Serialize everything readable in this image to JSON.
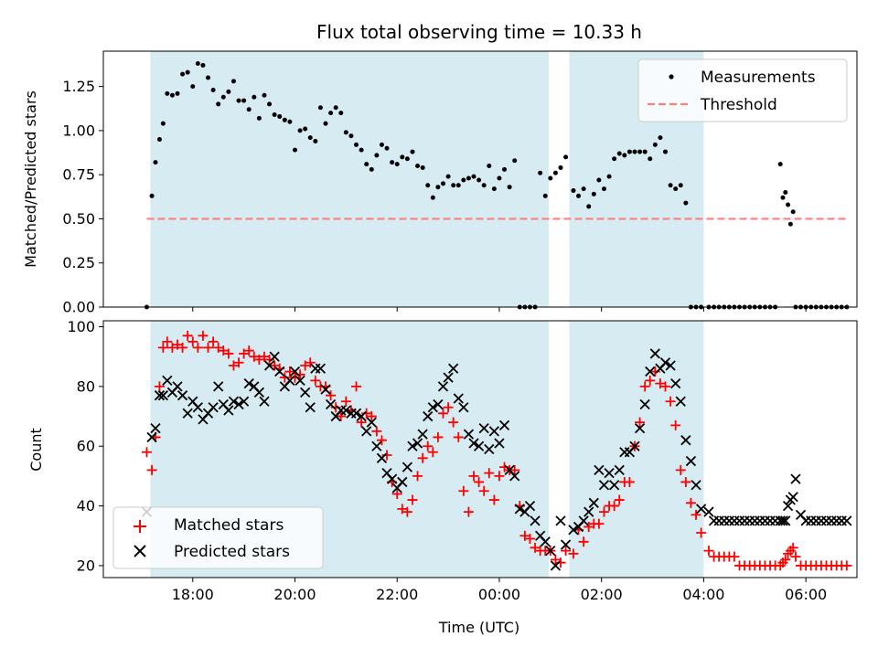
{
  "chart_data": [
    {
      "type": "scatter",
      "title": "Flux total observing time = 10.33 h",
      "xlabel": "",
      "ylabel": "Matched/Predicted stars",
      "xlim": [
        16.25,
        31.0
      ],
      "ylim": [
        0.0,
        1.45
      ],
      "yticks": [
        0.0,
        0.25,
        0.5,
        0.75,
        1.0,
        1.25
      ],
      "yticklabels": [
        "0.00",
        "0.25",
        "0.50",
        "0.75",
        "1.00",
        "1.25"
      ],
      "xticks": [
        18,
        20,
        22,
        24,
        26,
        28,
        30
      ],
      "show_xticklabels": false,
      "shaded_regions": [
        [
          17.17,
          24.97
        ],
        [
          25.37,
          28.0
        ]
      ],
      "legend": {
        "placement": "top-right",
        "entries": [
          "Measurements",
          "Threshold"
        ]
      },
      "threshold": {
        "name": "Threshold",
        "x": [
          17.1,
          30.8
        ],
        "y": 0.5,
        "color": "#ff7f7f"
      },
      "series": [
        {
          "name": "Measurements",
          "color": "#000000",
          "x": [
            17.1,
            17.2,
            17.27,
            17.35,
            17.42,
            17.5,
            17.6,
            17.7,
            17.8,
            17.9,
            18.0,
            18.1,
            18.2,
            18.3,
            18.4,
            18.5,
            18.6,
            18.7,
            18.8,
            18.9,
            19.0,
            19.1,
            19.2,
            19.3,
            19.4,
            19.5,
            19.6,
            19.7,
            19.8,
            19.9,
            20.0,
            20.1,
            20.2,
            20.3,
            20.4,
            20.5,
            20.6,
            20.7,
            20.8,
            20.9,
            21.0,
            21.1,
            21.2,
            21.3,
            21.4,
            21.5,
            21.6,
            21.7,
            21.8,
            21.9,
            22.0,
            22.1,
            22.2,
            22.3,
            22.4,
            22.5,
            22.6,
            22.7,
            22.8,
            22.9,
            23.0,
            23.1,
            23.2,
            23.3,
            23.4,
            23.5,
            23.6,
            23.7,
            23.8,
            23.9,
            24.0,
            24.1,
            24.2,
            24.3,
            24.4,
            24.5,
            24.6,
            24.7,
            24.8,
            24.9,
            25.0,
            25.1,
            25.2,
            25.3,
            25.45,
            25.55,
            25.65,
            25.75,
            25.85,
            25.95,
            26.05,
            26.15,
            26.25,
            26.35,
            26.45,
            26.55,
            26.65,
            26.75,
            26.85,
            26.95,
            27.05,
            27.15,
            27.25,
            27.35,
            27.45,
            27.55,
            27.65,
            27.75,
            27.85,
            27.95,
            28.1,
            28.2,
            28.3,
            28.4,
            28.5,
            28.6,
            28.7,
            28.8,
            28.9,
            29.0,
            29.1,
            29.2,
            29.3,
            29.4,
            29.5,
            29.55,
            29.6,
            29.65,
            29.7,
            29.75,
            29.8,
            29.9,
            30.0,
            30.1,
            30.2,
            30.3,
            30.4,
            30.5,
            30.6,
            30.7,
            30.8
          ],
          "y": [
            0.0,
            0.63,
            0.82,
            0.95,
            1.04,
            1.21,
            1.2,
            1.21,
            1.32,
            1.33,
            1.25,
            1.38,
            1.37,
            1.3,
            1.23,
            1.15,
            1.19,
            1.22,
            1.28,
            1.17,
            1.17,
            1.12,
            1.19,
            1.07,
            1.2,
            1.15,
            1.09,
            1.08,
            1.06,
            1.05,
            0.89,
            1.0,
            1.01,
            0.96,
            0.94,
            1.13,
            1.04,
            1.1,
            1.13,
            1.1,
            0.99,
            0.97,
            0.92,
            0.89,
            0.81,
            0.78,
            0.86,
            0.92,
            0.9,
            0.82,
            0.81,
            0.85,
            0.84,
            0.88,
            0.8,
            0.79,
            0.69,
            0.62,
            0.68,
            0.7,
            0.74,
            0.69,
            0.69,
            0.72,
            0.73,
            0.74,
            0.72,
            0.69,
            0.8,
            0.67,
            0.73,
            0.78,
            0.68,
            0.83,
            0.0,
            0.0,
            0.0,
            0.0,
            0.76,
            0.63,
            0.73,
            0.76,
            0.79,
            0.85,
            0.66,
            0.63,
            0.67,
            0.57,
            0.64,
            0.72,
            0.67,
            0.74,
            0.84,
            0.87,
            0.86,
            0.88,
            0.88,
            0.88,
            0.88,
            0.84,
            0.92,
            0.96,
            0.88,
            0.69,
            0.67,
            0.69,
            0.59,
            0.0,
            0.0,
            0.0,
            0.0,
            0.0,
            0.0,
            0.0,
            0.0,
            0.0,
            0.0,
            0.0,
            0.0,
            0.0,
            0.0,
            0.0,
            0.0,
            0.0,
            0.81,
            0.62,
            0.65,
            0.58,
            0.47,
            0.54,
            0.0,
            0.0,
            0.0,
            0.0,
            0.0,
            0.0,
            0.0,
            0.0,
            0.0,
            0.0,
            0.0
          ]
        }
      ]
    },
    {
      "type": "scatter",
      "title": "",
      "xlabel": "Time (UTC)",
      "ylabel": "Count",
      "xlim": [
        16.25,
        31.0
      ],
      "ylim": [
        16,
        102
      ],
      "yticks": [
        20,
        40,
        60,
        80,
        100
      ],
      "yticklabels": [
        "20",
        "40",
        "60",
        "80",
        "100"
      ],
      "xticks": [
        18,
        20,
        22,
        24,
        26,
        28,
        30
      ],
      "xticklabels": [
        "18:00",
        "20:00",
        "22:00",
        "00:00",
        "02:00",
        "04:00",
        "06:00"
      ],
      "shaded_regions": [
        [
          17.17,
          24.97
        ],
        [
          25.37,
          28.0
        ]
      ],
      "legend": {
        "placement": "bottom-left",
        "entries": [
          "Matched stars",
          "Predicted stars"
        ]
      },
      "series": [
        {
          "name": "Matched stars",
          "marker": "plus",
          "color": "#ff0000",
          "x": [
            17.1,
            17.2,
            17.27,
            17.35,
            17.42,
            17.5,
            17.6,
            17.7,
            17.8,
            17.9,
            18.0,
            18.1,
            18.2,
            18.3,
            18.4,
            18.5,
            18.6,
            18.7,
            18.8,
            18.9,
            19.0,
            19.1,
            19.2,
            19.3,
            19.4,
            19.5,
            19.6,
            19.7,
            19.8,
            19.9,
            20.0,
            20.1,
            20.2,
            20.3,
            20.4,
            20.5,
            20.6,
            20.7,
            20.8,
            20.9,
            21.0,
            21.1,
            21.2,
            21.3,
            21.4,
            21.5,
            21.6,
            21.7,
            21.8,
            21.9,
            22.0,
            22.1,
            22.2,
            22.3,
            22.4,
            22.5,
            22.6,
            22.7,
            22.8,
            22.9,
            23.0,
            23.1,
            23.2,
            23.3,
            23.4,
            23.5,
            23.6,
            23.7,
            23.8,
            23.9,
            24.0,
            24.1,
            24.2,
            24.3,
            24.4,
            24.5,
            24.6,
            24.7,
            24.8,
            24.9,
            25.0,
            25.1,
            25.2,
            25.3,
            25.45,
            25.55,
            25.65,
            25.75,
            25.85,
            25.95,
            26.05,
            26.15,
            26.25,
            26.35,
            26.45,
            26.55,
            26.65,
            26.75,
            26.85,
            26.95,
            27.05,
            27.15,
            27.25,
            27.35,
            27.45,
            27.55,
            27.65,
            27.75,
            27.85,
            27.95,
            28.1,
            28.2,
            28.3,
            28.4,
            28.5,
            28.6,
            28.7,
            28.8,
            28.9,
            29.0,
            29.1,
            29.2,
            29.3,
            29.4,
            29.5,
            29.55,
            29.6,
            29.65,
            29.7,
            29.75,
            29.8,
            29.9,
            30.0,
            30.1,
            30.2,
            30.3,
            30.4,
            30.5,
            30.6,
            30.7,
            30.8
          ],
          "y": [
            58,
            52,
            63,
            80,
            93,
            95,
            93,
            94,
            93,
            97,
            95,
            93,
            97,
            93,
            95,
            93,
            92,
            91,
            87,
            88,
            91,
            92,
            90,
            89,
            90,
            89,
            87,
            86,
            83,
            85,
            83,
            84,
            87,
            88,
            82,
            80,
            80,
            77,
            73,
            70,
            75,
            72,
            80,
            68,
            71,
            70,
            65,
            62,
            57,
            48,
            44,
            39,
            38,
            42,
            50,
            56,
            60,
            58,
            63,
            71,
            73,
            68,
            63,
            45,
            38,
            50,
            48,
            45,
            51,
            42,
            50,
            53,
            52,
            52,
            40,
            30,
            29,
            26,
            25,
            25,
            25,
            22,
            21,
            25,
            24,
            32,
            28,
            33,
            34,
            34,
            38,
            40,
            40,
            42,
            48,
            48,
            60,
            68,
            80,
            82,
            85,
            81,
            80,
            75,
            67,
            52,
            48,
            41,
            37,
            31,
            25,
            23,
            23,
            23,
            23,
            23,
            20,
            20,
            20,
            20,
            20,
            20,
            20,
            20,
            20,
            21,
            22,
            24,
            25,
            26,
            23,
            20,
            20,
            20,
            20,
            20,
            20,
            20,
            20,
            20,
            20
          ]
        },
        {
          "name": "Predicted stars",
          "marker": "x",
          "color": "#000000",
          "x": [
            17.1,
            17.2,
            17.27,
            17.35,
            17.42,
            17.5,
            17.6,
            17.7,
            17.8,
            17.9,
            18.0,
            18.1,
            18.2,
            18.3,
            18.4,
            18.5,
            18.6,
            18.7,
            18.8,
            18.9,
            19.0,
            19.1,
            19.2,
            19.3,
            19.4,
            19.5,
            19.6,
            19.7,
            19.8,
            19.9,
            20.0,
            20.1,
            20.2,
            20.3,
            20.4,
            20.5,
            20.6,
            20.7,
            20.8,
            20.9,
            21.0,
            21.1,
            21.2,
            21.3,
            21.4,
            21.5,
            21.6,
            21.7,
            21.8,
            21.9,
            22.0,
            22.1,
            22.2,
            22.3,
            22.4,
            22.5,
            22.6,
            22.7,
            22.8,
            22.9,
            23.0,
            23.1,
            23.2,
            23.3,
            23.4,
            23.5,
            23.6,
            23.7,
            23.8,
            23.9,
            24.0,
            24.1,
            24.2,
            24.3,
            24.4,
            24.5,
            24.6,
            24.7,
            24.8,
            24.9,
            25.0,
            25.1,
            25.2,
            25.3,
            25.45,
            25.55,
            25.65,
            25.75,
            25.85,
            25.95,
            26.05,
            26.15,
            26.25,
            26.35,
            26.45,
            26.55,
            26.65,
            26.75,
            26.85,
            26.95,
            27.05,
            27.15,
            27.25,
            27.35,
            27.45,
            27.55,
            27.65,
            27.75,
            27.85,
            27.95,
            28.1,
            28.2,
            28.3,
            28.4,
            28.5,
            28.6,
            28.7,
            28.8,
            28.9,
            29.0,
            29.1,
            29.2,
            29.3,
            29.4,
            29.5,
            29.55,
            29.6,
            29.65,
            29.7,
            29.75,
            29.8,
            29.9,
            30.0,
            30.1,
            30.2,
            30.3,
            30.4,
            30.5,
            30.6,
            30.7,
            30.8
          ],
          "y": [
            38,
            63,
            66,
            77,
            77,
            82,
            78,
            80,
            77,
            71,
            75,
            73,
            69,
            71,
            73,
            80,
            74,
            72,
            75,
            74,
            75,
            81,
            80,
            78,
            75,
            87,
            90,
            85,
            80,
            82,
            85,
            82,
            78,
            73,
            86,
            86,
            79,
            74,
            70,
            72,
            72,
            71,
            71,
            70,
            65,
            68,
            60,
            56,
            51,
            49,
            46,
            48,
            53,
            60,
            61,
            64,
            70,
            73,
            74,
            80,
            83,
            86,
            76,
            73,
            64,
            61,
            60,
            66,
            59,
            65,
            61,
            67,
            52,
            50,
            39,
            38,
            40,
            35,
            30,
            28,
            25,
            20,
            35,
            27,
            32,
            33,
            35,
            38,
            41,
            52,
            47,
            51,
            47,
            52,
            58,
            58,
            60,
            66,
            74,
            85,
            91,
            86,
            88,
            87,
            81,
            75,
            62,
            55,
            47,
            39,
            38,
            35,
            35,
            35,
            35,
            35,
            35,
            35,
            35,
            35,
            35,
            35,
            35,
            35,
            35,
            35,
            35,
            40,
            42,
            43,
            49,
            37,
            35,
            35,
            35,
            35,
            35,
            35,
            35,
            35,
            35
          ]
        }
      ]
    }
  ]
}
